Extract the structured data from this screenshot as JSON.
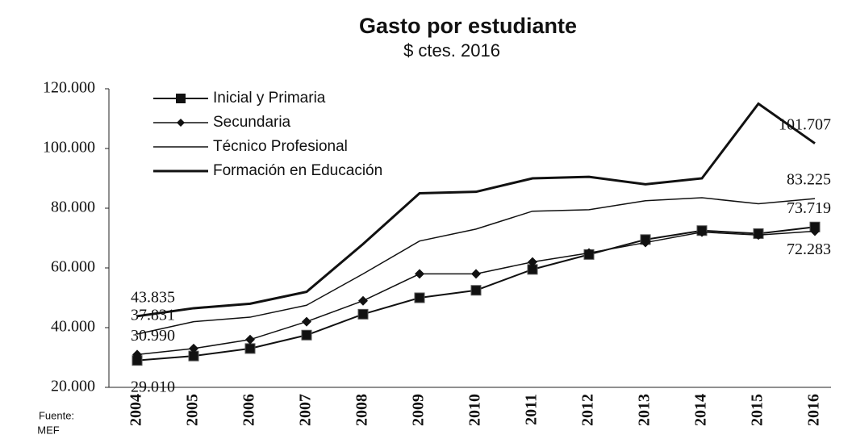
{
  "chart_data": {
    "type": "line",
    "title": "Gasto por estudiante",
    "subtitle": "$ ctes. 2016",
    "source": [
      "Fuente:",
      "MEF"
    ],
    "categories": [
      "2004",
      "2005",
      "2006",
      "2007",
      "2008",
      "2009",
      "2010",
      "2011",
      "2012",
      "2013",
      "2014",
      "2015",
      "2016"
    ],
    "series": [
      {
        "name": "Inicial y Primaria",
        "color": "#111111",
        "marker": "square",
        "line_width": 2,
        "values": [
          29010,
          30500,
          33000,
          37500,
          44500,
          50000,
          52500,
          59500,
          64500,
          69500,
          72500,
          71500,
          73719
        ],
        "value_labels": [
          "29.010",
          null,
          null,
          null,
          null,
          null,
          null,
          null,
          null,
          null,
          null,
          null,
          "73.719"
        ]
      },
      {
        "name": "Secundaria",
        "color": "#111111",
        "marker": "diamond",
        "line_width": 1.5,
        "values": [
          30990,
          33000,
          36000,
          42000,
          49000,
          58000,
          58000,
          62000,
          65000,
          68500,
          72000,
          71000,
          72283
        ],
        "value_labels": [
          "30.990",
          null,
          null,
          null,
          null,
          null,
          null,
          null,
          null,
          null,
          null,
          null,
          "72.283"
        ]
      },
      {
        "name": "Técnico Profesional",
        "color": "#111111",
        "line_width": 1.5,
        "values": [
          37831,
          42000,
          43500,
          47500,
          58000,
          69000,
          73000,
          79000,
          79500,
          82500,
          83500,
          81500,
          83225
        ],
        "value_labels": [
          "37.831",
          null,
          null,
          null,
          null,
          null,
          null,
          null,
          null,
          null,
          null,
          null,
          "83.225"
        ]
      },
      {
        "name": "Formación en Educación",
        "color": "#111111",
        "line_width": 3,
        "values": [
          43835,
          46500,
          48000,
          52000,
          68000,
          85000,
          85500,
          90000,
          90500,
          88000,
          90000,
          115000,
          101707
        ],
        "value_labels": [
          "43.835",
          null,
          null,
          null,
          null,
          null,
          null,
          null,
          null,
          null,
          null,
          null,
          "101.707"
        ]
      }
    ],
    "ylim": [
      20000,
      120000
    ],
    "yticks": [
      {
        "value": 20000,
        "label": "20.000"
      },
      {
        "value": 40000,
        "label": "40.000"
      },
      {
        "value": 60000,
        "label": "60.000"
      },
      {
        "value": 80000,
        "label": "80.000"
      },
      {
        "value": 100000,
        "label": "100.000"
      },
      {
        "value": 120000,
        "label": "120.000"
      }
    ],
    "grid": false,
    "legend": "upper left"
  }
}
